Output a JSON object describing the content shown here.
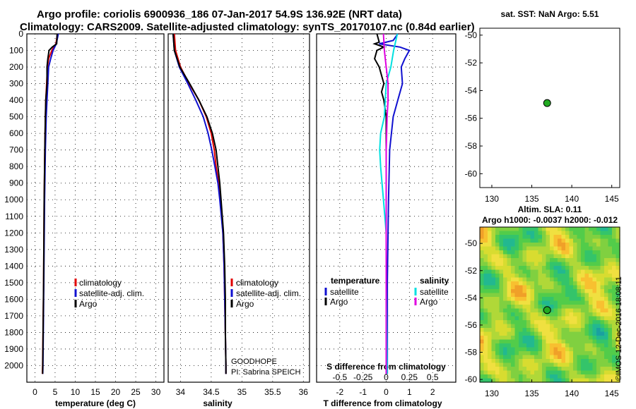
{
  "header": {
    "title_line1": "Argo profile: coriolis 6900936_186 07-Jan-2017 54.9S 136.92E (NRT data)",
    "title_line2": "Climatology: CARS2009. Satellite-adjusted climatology: synTS_20170107.nc (0.84d earlier)"
  },
  "colors": {
    "climatology": "#e00000",
    "satellite": "#1010d0",
    "argo": "#000000",
    "sal_satellite": "#00e0e0",
    "sal_argo": "#e000e0",
    "marker": "#22aa22"
  },
  "chart_data": [
    {
      "id": "temperature",
      "type": "line",
      "xlabel": "temperature (deg C)",
      "ylabel": "",
      "xlim": [
        -2,
        32
      ],
      "ylim": [
        2100,
        0
      ],
      "xticks": [
        0,
        5,
        10,
        15,
        20,
        25,
        30
      ],
      "yticks": [
        100,
        200,
        300,
        400,
        500,
        600,
        700,
        800,
        900,
        1000,
        1100,
        1200,
        1300,
        1400,
        1500,
        1600,
        1700,
        1800,
        1900,
        2000
      ],
      "legend": [
        "climatology",
        "satellite-adj. clim.",
        "Argo"
      ],
      "series": [
        {
          "name": "climatology",
          "color_key": "climatology",
          "depth": [
            0,
            60,
            100,
            150,
            200,
            300,
            400,
            500,
            700,
            1000,
            1500,
            2000,
            2050
          ],
          "values": [
            5.6,
            5.2,
            4.2,
            3.4,
            3.1,
            2.9,
            2.7,
            2.6,
            2.45,
            2.3,
            2.15,
            1.9,
            1.85
          ]
        },
        {
          "name": "satellite-adj. clim.",
          "color_key": "satellite",
          "depth": [
            0,
            60,
            100,
            150,
            200,
            300,
            400,
            500,
            700,
            1000,
            1500,
            2000,
            2050
          ],
          "values": [
            5.8,
            5.3,
            4.5,
            3.9,
            3.4,
            3.2,
            3.0,
            2.8,
            2.6,
            2.4,
            2.2,
            2.0,
            1.95
          ]
        },
        {
          "name": "Argo",
          "color_key": "argo",
          "depth": [
            0,
            60,
            80,
            100,
            150,
            200,
            300,
            400,
            500,
            700,
            1000,
            1500,
            2000,
            2050
          ],
          "values": [
            5.5,
            5.4,
            4.3,
            3.5,
            3.2,
            3.0,
            3.0,
            2.7,
            2.6,
            2.45,
            2.3,
            2.15,
            1.95,
            1.9
          ]
        }
      ]
    },
    {
      "id": "salinity",
      "type": "line",
      "xlabel": "salinity",
      "xlim": [
        33.8,
        36.1
      ],
      "ylim": [
        2100,
        0
      ],
      "xticks": [
        34,
        34.5,
        35,
        35.5,
        36
      ],
      "xticklabels": [
        "34",
        "34.5",
        "35",
        "35.5",
        "36"
      ],
      "legend": [
        "climatology",
        "satellite-adj. clim.",
        "Argo"
      ],
      "annotations": [
        "GOODHOPE",
        "PI: Sabrina SPEICH"
      ],
      "series": [
        {
          "name": "climatology",
          "color_key": "climatology",
          "depth": [
            0,
            100,
            200,
            300,
            400,
            500,
            600,
            700,
            800,
            900,
            1000,
            1200,
            1400,
            1600,
            1800,
            2000,
            2050
          ],
          "values": [
            33.9,
            33.92,
            34.0,
            34.14,
            34.3,
            34.42,
            34.5,
            34.55,
            34.58,
            34.62,
            34.65,
            34.69,
            34.71,
            34.72,
            34.73,
            34.74,
            34.74
          ]
        },
        {
          "name": "satellite-adj. clim.",
          "color_key": "satellite",
          "depth": [
            0,
            100,
            200,
            300,
            400,
            500,
            600,
            700,
            800,
            900,
            1000,
            1200,
            1400,
            1600,
            1800,
            2000,
            2050
          ],
          "values": [
            33.88,
            33.9,
            33.98,
            34.12,
            34.25,
            34.37,
            34.45,
            34.51,
            34.56,
            34.61,
            34.64,
            34.69,
            34.71,
            34.72,
            34.73,
            34.74,
            34.74
          ]
        },
        {
          "name": "Argo",
          "color_key": "argo",
          "depth": [
            0,
            100,
            200,
            300,
            400,
            500,
            600,
            700,
            800,
            900,
            1000,
            1200,
            1400,
            1600,
            1800,
            2000,
            2050
          ],
          "values": [
            33.88,
            33.9,
            33.99,
            34.15,
            34.3,
            34.43,
            34.52,
            34.58,
            34.61,
            34.64,
            34.66,
            34.7,
            34.72,
            34.73,
            34.73,
            34.74,
            34.74
          ]
        }
      ]
    },
    {
      "id": "difference",
      "type": "line",
      "xlabel": "T difference from climatology",
      "xlim": [
        -3,
        3
      ],
      "ylim": [
        2100,
        0
      ],
      "xticks": [
        -2,
        -1,
        0,
        1,
        2
      ],
      "sal_xlabel": "S difference from climatology",
      "sal_xticklabels": [
        "-0.5",
        "-0.25",
        "0",
        "0.25",
        "0.5"
      ],
      "legend_temperature_title": "temperature",
      "legend_salinity_title": "salinity",
      "legend_temperature": [
        "satellite",
        "Argo"
      ],
      "legend_salinity": [
        "satellite",
        "Argo"
      ],
      "series": [
        {
          "name": "T satellite",
          "color_key": "satellite",
          "depth": [
            0,
            40,
            60,
            80,
            100,
            150,
            200,
            300,
            400,
            500,
            700,
            1000,
            1500,
            2000,
            2050
          ],
          "values": [
            0.5,
            0.3,
            -0.3,
            0.6,
            1.0,
            0.8,
            0.65,
            0.7,
            0.5,
            0.3,
            0.15,
            0.1,
            0.05,
            0.05,
            0.05
          ]
        },
        {
          "name": "T Argo",
          "color_key": "argo",
          "depth": [
            0,
            50,
            60,
            80,
            100,
            150,
            200,
            300,
            350,
            400,
            500,
            700,
            1000,
            1500,
            2000,
            2050
          ],
          "values": [
            -0.4,
            -0.3,
            -0.5,
            -0.1,
            -0.4,
            -0.5,
            -0.3,
            -0.1,
            -0.2,
            -0.1,
            0.0,
            0.0,
            0.0,
            0.0,
            0.0,
            0.0
          ]
        },
        {
          "name": "S satellite",
          "color_key": "sal_satellite",
          "depth": [
            0,
            100,
            200,
            300,
            400,
            500,
            600,
            700,
            800,
            1000,
            1200,
            1500,
            2000,
            2050
          ],
          "values": [
            0.12,
            0.08,
            0.05,
            0.0,
            -0.01,
            -0.02,
            -0.06,
            -0.07,
            -0.06,
            -0.03,
            0.0,
            0.0,
            0.01,
            0.01
          ]
        },
        {
          "name": "S Argo",
          "color_key": "sal_argo",
          "depth": [
            0,
            100,
            200,
            300,
            400,
            500,
            700,
            1000,
            1500,
            2000,
            2050
          ],
          "values": [
            -0.03,
            -0.02,
            0.0,
            0.02,
            0.02,
            0.01,
            0.0,
            0.0,
            0.0,
            0.0,
            0.0
          ]
        }
      ]
    },
    {
      "id": "sst_map",
      "type": "scatter",
      "title": "sat. SST: NaN Argo: 5.51",
      "xlim": [
        128.5,
        146
      ],
      "ylim": [
        -61,
        -49.5
      ],
      "xticks": [
        130,
        135,
        140,
        145
      ],
      "yticks": [
        -50,
        -52,
        -54,
        -56,
        -58,
        -60
      ],
      "points": [
        {
          "lon": 136.92,
          "lat": -54.9
        }
      ]
    },
    {
      "id": "sla_map",
      "type": "heatmap",
      "title_line1": "Altim. SLA: 0.11",
      "title_line2": "Argo h1000: -0.0037 h2000: -0.012",
      "xlim": [
        128.5,
        146
      ],
      "ylim": [
        -60.2,
        -48.8
      ],
      "xticks": [
        130,
        135,
        140,
        145
      ],
      "yticks": [
        -50,
        -52,
        -54,
        -56,
        -58,
        -60
      ],
      "points": [
        {
          "lon": 136.92,
          "lat": -54.9
        }
      ]
    }
  ],
  "footer": {
    "credit": "©IMOS 12-Dec-2016 18:08:11"
  }
}
